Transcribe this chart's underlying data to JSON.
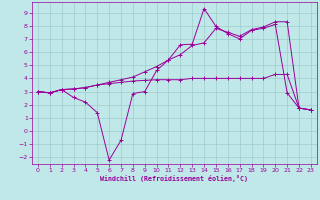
{
  "xlabel": "Windchill (Refroidissement éolien,°C)",
  "bg_color": "#c0e8e8",
  "grid_color": "#a0cccc",
  "line_color": "#990099",
  "xlim": [
    -0.5,
    23.5
  ],
  "ylim": [
    -2.5,
    9.8
  ],
  "xticks": [
    0,
    1,
    2,
    3,
    4,
    5,
    6,
    7,
    8,
    9,
    10,
    11,
    12,
    13,
    14,
    15,
    16,
    17,
    18,
    19,
    20,
    21,
    22,
    23
  ],
  "yticks": [
    -2,
    -1,
    0,
    1,
    2,
    3,
    4,
    5,
    6,
    7,
    8,
    9
  ],
  "line1_x": [
    0,
    1,
    2,
    3,
    4,
    5,
    6,
    7,
    8,
    9,
    10,
    11,
    12,
    13,
    14,
    15,
    16,
    17,
    18,
    19,
    20,
    21,
    22,
    23
  ],
  "line1_y": [
    3.0,
    2.9,
    3.15,
    3.2,
    3.3,
    3.5,
    3.7,
    3.9,
    4.1,
    4.5,
    4.9,
    5.4,
    5.8,
    6.5,
    6.7,
    7.8,
    7.5,
    7.2,
    7.7,
    7.9,
    8.3,
    8.3,
    1.75,
    1.6
  ],
  "line2_x": [
    0,
    1,
    2,
    3,
    4,
    5,
    6,
    7,
    8,
    9,
    10,
    11,
    12,
    13,
    14,
    15,
    16,
    17,
    18,
    19,
    20,
    21,
    22,
    23
  ],
  "line2_y": [
    3.0,
    2.9,
    3.15,
    3.2,
    3.3,
    3.5,
    3.6,
    3.7,
    3.8,
    3.85,
    3.9,
    3.9,
    3.9,
    4.0,
    4.0,
    4.0,
    4.0,
    4.0,
    4.0,
    4.0,
    4.3,
    4.3,
    1.75,
    1.6
  ],
  "line3_x": [
    0,
    1,
    2,
    3,
    4,
    5,
    6,
    7,
    8,
    9,
    10,
    11,
    12,
    13,
    14,
    15,
    16,
    17,
    18,
    19,
    20,
    21,
    22,
    23
  ],
  "line3_y": [
    3.0,
    2.9,
    3.15,
    2.55,
    2.2,
    1.4,
    -2.2,
    -0.7,
    2.85,
    3.0,
    4.6,
    5.4,
    6.55,
    6.6,
    9.3,
    7.95,
    7.4,
    7.0,
    7.65,
    7.8,
    8.1,
    2.9,
    1.75,
    1.6
  ]
}
